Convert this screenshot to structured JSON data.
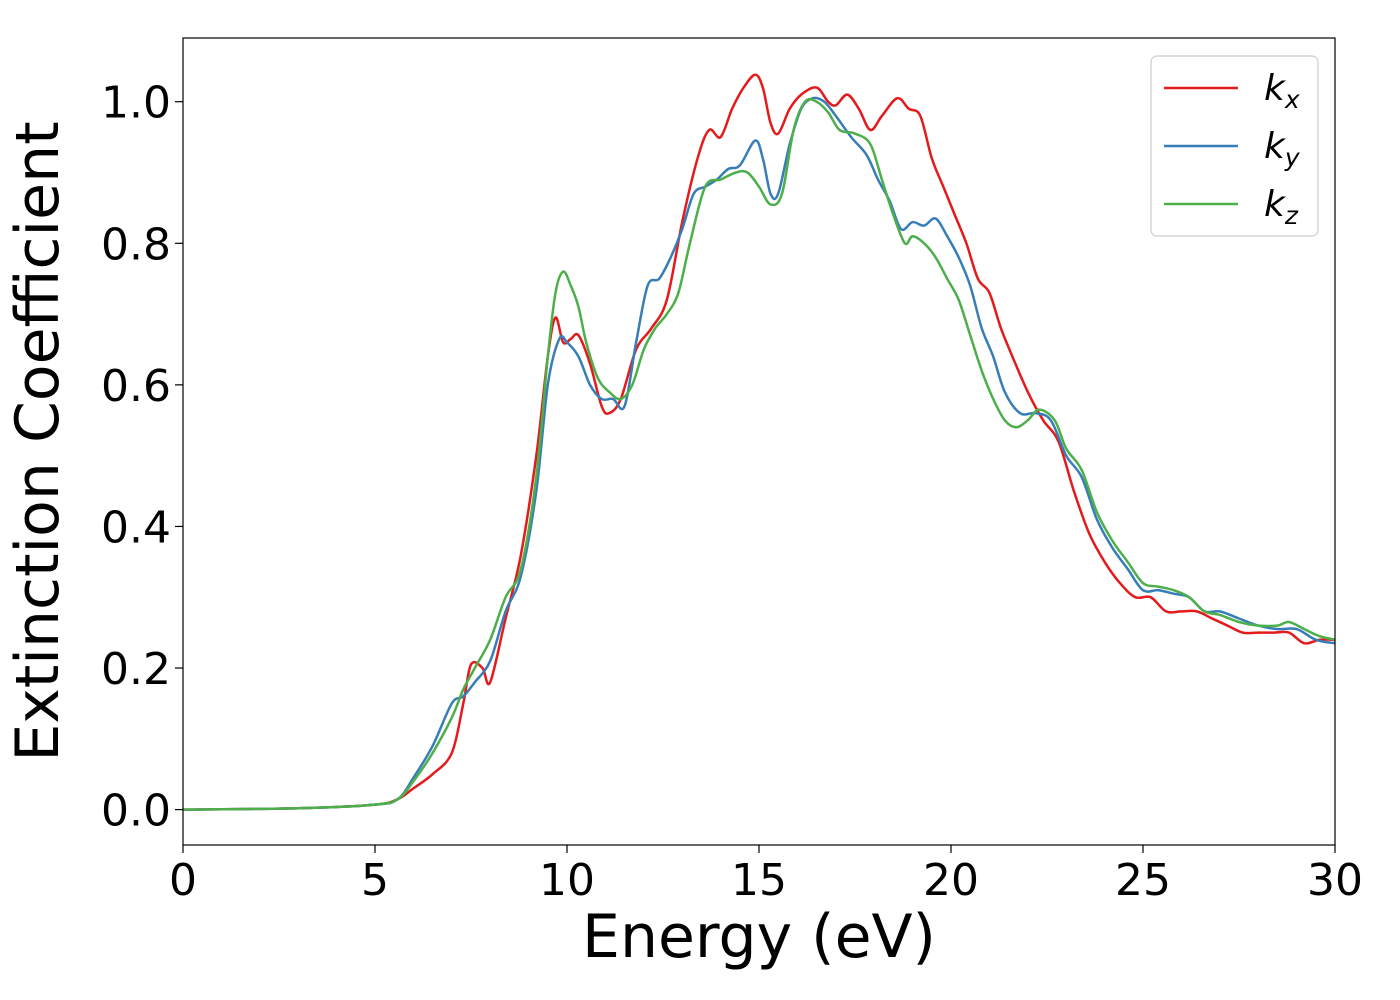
{
  "chart_data": {
    "type": "line",
    "title": "",
    "xlabel": "Energy (eV)",
    "ylabel": "Extinction Coefficient",
    "xlim": [
      0,
      30
    ],
    "ylim": [
      -0.05,
      1.09
    ],
    "xticks": [
      0,
      5,
      10,
      15,
      20,
      25,
      30
    ],
    "xtick_labels": [
      "0",
      "5",
      "10",
      "15",
      "20",
      "25",
      "30"
    ],
    "yticks": [
      0.0,
      0.2,
      0.4,
      0.6,
      0.8,
      1.0
    ],
    "ytick_labels": [
      "0.0",
      "0.2",
      "0.4",
      "0.6",
      "0.8",
      "1.0"
    ],
    "grid": false,
    "legend_position": "top-right",
    "series": [
      {
        "name": "k_x",
        "legend_base": "k",
        "legend_sub": "x",
        "color": "#e41a1c",
        "x": [
          0,
          3,
          5,
          5.6,
          6,
          6.5,
          7,
          7.3,
          7.5,
          7.8,
          8,
          8.4,
          8.8,
          9.2,
          9.5,
          9.7,
          9.9,
          10.1,
          10.3,
          10.6,
          10.9,
          11.1,
          11.4,
          11.8,
          12.2,
          12.6,
          13,
          13.4,
          13.7,
          14,
          14.3,
          14.6,
          14.9,
          15.1,
          15.3,
          15.5,
          15.8,
          16.1,
          16.5,
          16.8,
          17,
          17.3,
          17.6,
          17.9,
          18.2,
          18.6,
          18.9,
          19.2,
          19.5,
          19.8,
          20.1,
          20.4,
          20.7,
          21,
          21.3,
          21.6,
          22,
          22.4,
          22.8,
          23.2,
          23.6,
          24,
          24.4,
          24.8,
          25.2,
          25.6,
          26,
          26.4,
          26.8,
          27.2,
          27.6,
          28,
          28.4,
          28.8,
          29.2,
          29.6,
          30
        ],
        "y": [
          0,
          0.002,
          0.007,
          0.015,
          0.03,
          0.05,
          0.08,
          0.15,
          0.205,
          0.2,
          0.18,
          0.27,
          0.36,
          0.5,
          0.64,
          0.695,
          0.66,
          0.665,
          0.67,
          0.63,
          0.57,
          0.56,
          0.58,
          0.65,
          0.68,
          0.72,
          0.83,
          0.92,
          0.96,
          0.95,
          0.99,
          1.02,
          1.038,
          1.02,
          0.97,
          0.955,
          0.99,
          1.01,
          1.02,
          1.0,
          0.995,
          1.01,
          0.99,
          0.96,
          0.98,
          1.005,
          0.99,
          0.98,
          0.92,
          0.88,
          0.84,
          0.8,
          0.75,
          0.73,
          0.68,
          0.64,
          0.59,
          0.55,
          0.52,
          0.45,
          0.39,
          0.35,
          0.32,
          0.3,
          0.3,
          0.28,
          0.28,
          0.28,
          0.27,
          0.26,
          0.25,
          0.25,
          0.25,
          0.25,
          0.235,
          0.24,
          0.24
        ]
      },
      {
        "name": "k_y",
        "legend_base": "k",
        "legend_sub": "y",
        "color": "#377eb8",
        "x": [
          0,
          3,
          5,
          5.6,
          6,
          6.5,
          7,
          7.3,
          7.6,
          8,
          8.4,
          8.8,
          9.2,
          9.5,
          9.8,
          10,
          10.3,
          10.6,
          10.9,
          11.2,
          11.5,
          11.8,
          12.1,
          12.4,
          12.7,
          13,
          13.3,
          13.6,
          13.9,
          14.2,
          14.5,
          14.9,
          15.1,
          15.3,
          15.5,
          15.8,
          16.1,
          16.4,
          16.7,
          17,
          17.4,
          17.8,
          18.1,
          18.4,
          18.7,
          19,
          19.3,
          19.6,
          19.9,
          20.2,
          20.5,
          20.8,
          21.1,
          21.4,
          21.8,
          22.2,
          22.6,
          23,
          23.4,
          23.8,
          24.2,
          24.6,
          25,
          25.4,
          25.8,
          26.2,
          26.6,
          27,
          27.5,
          28,
          28.5,
          29,
          29.5,
          30
        ],
        "y": [
          0,
          0.002,
          0.007,
          0.015,
          0.045,
          0.09,
          0.15,
          0.16,
          0.18,
          0.21,
          0.28,
          0.33,
          0.45,
          0.6,
          0.665,
          0.66,
          0.64,
          0.6,
          0.58,
          0.58,
          0.57,
          0.66,
          0.74,
          0.75,
          0.78,
          0.82,
          0.87,
          0.88,
          0.89,
          0.905,
          0.91,
          0.945,
          0.92,
          0.87,
          0.87,
          0.94,
          0.99,
          1.005,
          1.0,
          0.98,
          0.95,
          0.925,
          0.89,
          0.86,
          0.82,
          0.83,
          0.825,
          0.835,
          0.81,
          0.78,
          0.74,
          0.68,
          0.64,
          0.59,
          0.56,
          0.56,
          0.55,
          0.5,
          0.47,
          0.41,
          0.37,
          0.34,
          0.31,
          0.31,
          0.305,
          0.3,
          0.28,
          0.28,
          0.27,
          0.26,
          0.255,
          0.255,
          0.24,
          0.235
        ]
      },
      {
        "name": "k_z",
        "legend_base": "k",
        "legend_sub": "z",
        "color": "#4daf4a",
        "x": [
          0,
          3,
          5,
          5.6,
          6,
          6.5,
          7,
          7.3,
          7.6,
          8,
          8.4,
          8.8,
          9.2,
          9.5,
          9.7,
          9.9,
          10.1,
          10.3,
          10.5,
          10.8,
          11.1,
          11.4,
          11.7,
          12,
          12.3,
          12.6,
          12.9,
          13.2,
          13.6,
          14,
          14.4,
          14.7,
          15,
          15.3,
          15.6,
          15.9,
          16.2,
          16.5,
          16.8,
          17.1,
          17.5,
          17.9,
          18.2,
          18.5,
          18.8,
          19,
          19.3,
          19.6,
          19.9,
          20.2,
          20.5,
          20.8,
          21.1,
          21.4,
          21.7,
          22,
          22.3,
          22.7,
          23,
          23.4,
          23.8,
          24.2,
          24.6,
          25,
          25.4,
          25.8,
          26.2,
          26.6,
          27,
          27.5,
          28,
          28.5,
          28.8,
          29.2,
          29.6,
          30
        ],
        "y": [
          0,
          0.002,
          0.007,
          0.015,
          0.04,
          0.08,
          0.13,
          0.17,
          0.2,
          0.24,
          0.3,
          0.34,
          0.47,
          0.64,
          0.73,
          0.76,
          0.74,
          0.71,
          0.66,
          0.61,
          0.59,
          0.58,
          0.6,
          0.65,
          0.68,
          0.7,
          0.73,
          0.8,
          0.88,
          0.89,
          0.9,
          0.9,
          0.88,
          0.855,
          0.87,
          0.96,
          1.0,
          1.0,
          0.985,
          0.96,
          0.955,
          0.94,
          0.89,
          0.84,
          0.8,
          0.81,
          0.8,
          0.78,
          0.75,
          0.72,
          0.67,
          0.62,
          0.58,
          0.55,
          0.54,
          0.55,
          0.565,
          0.55,
          0.51,
          0.48,
          0.42,
          0.38,
          0.35,
          0.32,
          0.315,
          0.31,
          0.3,
          0.28,
          0.275,
          0.265,
          0.26,
          0.26,
          0.265,
          0.255,
          0.245,
          0.24
        ]
      }
    ]
  }
}
